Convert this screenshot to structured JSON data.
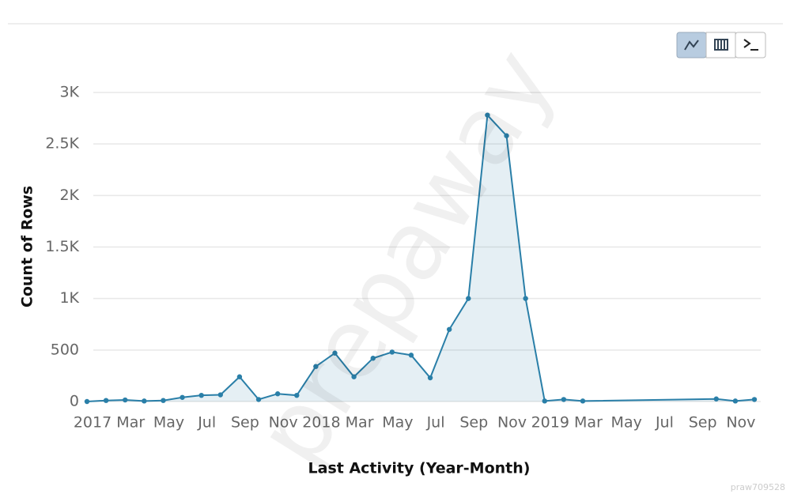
{
  "chart_data": {
    "type": "area",
    "x_label": "Last Activity (Year-Month)",
    "y_label": "Count of Rows",
    "x": [
      0,
      1,
      2,
      3,
      4,
      5,
      6,
      7,
      8,
      9,
      10,
      11,
      12,
      13,
      14,
      15,
      16,
      17,
      18,
      19,
      20,
      21,
      22,
      23,
      24,
      25,
      26,
      33,
      34,
      35
    ],
    "series": [
      {
        "color": "#2a7fa8",
        "values": [
          0,
          10,
          15,
          5,
          10,
          40,
          60,
          65,
          240,
          20,
          75,
          60,
          340,
          470,
          240,
          420,
          480,
          450,
          230,
          700,
          1000,
          2780,
          2580,
          1000,
          5,
          20,
          5,
          25,
          5,
          20
        ]
      }
    ],
    "xlim": [
      0,
      35
    ],
    "xticks": [
      {
        "value": 0,
        "label": "2017"
      },
      {
        "value": 2,
        "label": "Mar"
      },
      {
        "value": 4,
        "label": "May"
      },
      {
        "value": 6,
        "label": "Jul"
      },
      {
        "value": 8,
        "label": "Sep"
      },
      {
        "value": 10,
        "label": "Nov"
      },
      {
        "value": 12,
        "label": "2018"
      },
      {
        "value": 14,
        "label": "Mar"
      },
      {
        "value": 16,
        "label": "May"
      },
      {
        "value": 18,
        "label": "Jul"
      },
      {
        "value": 20,
        "label": "Sep"
      },
      {
        "value": 22,
        "label": "Nov"
      },
      {
        "value": 24,
        "label": "2019"
      },
      {
        "value": 26,
        "label": "Mar"
      },
      {
        "value": 28,
        "label": "May"
      },
      {
        "value": 30,
        "label": "Jul"
      },
      {
        "value": 32,
        "label": "Sep"
      },
      {
        "value": 34,
        "label": "Nov"
      }
    ],
    "ylim": [
      0,
      3000
    ],
    "yticks": [
      0,
      500,
      {
        "value": 1000,
        "label": "1K"
      },
      {
        "value": 1500,
        "label": "1.5K"
      },
      {
        "value": 2000,
        "label": "2K"
      },
      {
        "value": 2500,
        "label": "2.5K"
      },
      {
        "value": 3000,
        "label": "3K"
      }
    ],
    "grid": true
  },
  "watermark": "prepaway",
  "footer_id": "praw709528"
}
